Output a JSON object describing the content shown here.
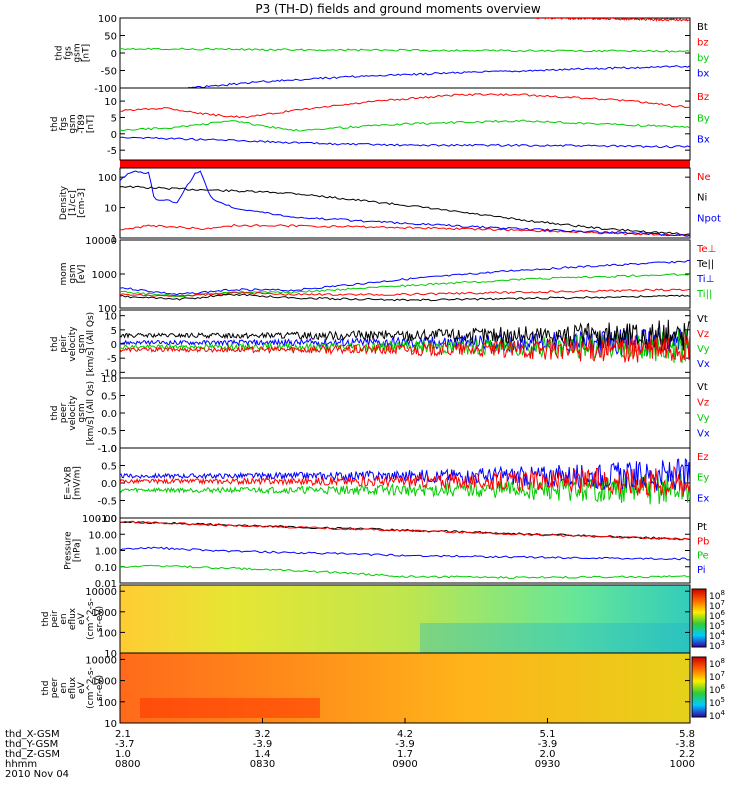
{
  "title": "P3 (TH-D) fields and ground moments overview",
  "chart_data": [
    {
      "type": "line",
      "ylabel": [
        "thd",
        "fgs",
        "gsm",
        "[nT]"
      ],
      "ylim": [
        -100,
        100
      ],
      "yticks": [
        "100",
        "50",
        "0",
        "-50",
        "-100"
      ],
      "ytick_values": [
        100,
        50,
        0,
        -50,
        -100
      ],
      "legend": [
        {
          "name": "Bt",
          "color": "#000000"
        },
        {
          "name": "bz",
          "color": "#ff0000"
        },
        {
          "name": "by",
          "color": "#00cc00"
        },
        {
          "name": "bx",
          "color": "#0000ff"
        }
      ],
      "series": [
        {
          "name": "Bt",
          "color": "#000000",
          "x": [
            0.73,
            1.0
          ],
          "y": [
            103,
            101
          ]
        },
        {
          "name": "bz",
          "color": "#ff0000",
          "x": [
            0.73,
            0.85,
            1.0
          ],
          "y": [
            100,
            98,
            94
          ]
        },
        {
          "name": "by",
          "color": "#00cc00",
          "x": [
            0,
            0.3,
            0.6,
            1.0
          ],
          "y": [
            13,
            9,
            7,
            5
          ]
        },
        {
          "name": "bx",
          "color": "#0000ff",
          "x": [
            0.12,
            0.25,
            0.4,
            0.6,
            0.8,
            1.0
          ],
          "y": [
            -100,
            -82,
            -68,
            -56,
            -46,
            -38
          ]
        }
      ]
    },
    {
      "type": "line",
      "ylabel": [
        "thd",
        "fgs",
        "gsm",
        "-T89",
        "[nT]"
      ],
      "ylim": [
        -8,
        14
      ],
      "yticks": [
        "10",
        "5",
        "0",
        "-5"
      ],
      "ytick_values": [
        10,
        5,
        0,
        -5
      ],
      "legend": [
        {
          "name": "Bz",
          "color": "#ff0000"
        },
        {
          "name": "By",
          "color": "#00cc00"
        },
        {
          "name": "Bx",
          "color": "#0000ff"
        }
      ],
      "series": [
        {
          "name": "Bz",
          "color": "#ff0000",
          "x": [
            0,
            0.08,
            0.15,
            0.22,
            0.3,
            0.45,
            0.6,
            0.7,
            0.8,
            0.9,
            1.0
          ],
          "y": [
            7,
            8,
            6,
            5,
            7,
            10,
            12,
            12,
            11,
            10,
            8
          ]
        },
        {
          "name": "By",
          "color": "#00cc00",
          "x": [
            0,
            0.1,
            0.2,
            0.3,
            0.5,
            0.7,
            0.85,
            1.0
          ],
          "y": [
            1,
            2,
            4,
            1,
            3,
            4,
            3,
            2
          ]
        },
        {
          "name": "Bx",
          "color": "#0000ff",
          "x": [
            0,
            0.1,
            0.2,
            0.35,
            0.5,
            0.7,
            1.0
          ],
          "y": [
            -1,
            -1.5,
            -2,
            -3,
            -3.5,
            -3.5,
            -4
          ]
        }
      ]
    },
    {
      "type": "line",
      "ylabel": [
        "Density",
        "[1/cc]",
        "[cm-3]"
      ],
      "log": true,
      "ylim": [
        1,
        200
      ],
      "yticks": [
        "100",
        "10",
        "1"
      ],
      "ytick_values": [
        100,
        10,
        1
      ],
      "legend": [
        {
          "name": "Ne",
          "color": "#ff0000"
        },
        {
          "name": "Ni",
          "color": "#000000"
        },
        {
          "name": "Npot",
          "color": "#0000ff"
        }
      ],
      "series": [
        {
          "name": "Ni",
          "color": "#000000",
          "x": [
            0,
            0.05,
            0.12,
            0.3,
            0.5,
            0.7,
            0.85,
            1.0
          ],
          "y": [
            50,
            45,
            40,
            30,
            12,
            4,
            2,
            1.3
          ]
        },
        {
          "name": "Ne",
          "color": "#ff0000",
          "x": [
            0,
            0.05,
            0.1,
            0.15,
            0.2,
            0.3,
            0.5,
            0.7,
            1.0
          ],
          "y": [
            1.8,
            2.5,
            2.3,
            2.0,
            2.6,
            2.5,
            2.2,
            1.8,
            1.2
          ]
        },
        {
          "name": "Npot",
          "color": "#0000ff",
          "x": [
            0,
            0.02,
            0.05,
            0.06,
            0.1,
            0.13,
            0.14,
            0.16,
            0.2,
            0.3,
            0.5,
            0.7,
            1.0
          ],
          "y": [
            80,
            150,
            140,
            20,
            15,
            120,
            170,
            20,
            10,
            5,
            3,
            2,
            1.2
          ]
        }
      ]
    },
    {
      "type": "line",
      "ylabel": [
        "mom",
        "gsm",
        "[eV]"
      ],
      "log": true,
      "ylim": [
        100,
        10000
      ],
      "yticks": [
        "10000",
        "1000",
        "100"
      ],
      "ytick_values": [
        10000,
        1000,
        100
      ],
      "legend": [
        {
          "name": "Te⊥",
          "color": "#ff0000"
        },
        {
          "name": "Te||",
          "color": "#000000"
        },
        {
          "name": "Ti⊥",
          "color": "#0000ff"
        },
        {
          "name": "Ti||",
          "color": "#00cc00"
        }
      ],
      "series": [
        {
          "name": "Ti⊥",
          "color": "#0000ff",
          "x": [
            0,
            0.1,
            0.2,
            0.3,
            0.5,
            0.7,
            1.0
          ],
          "y": [
            400,
            250,
            350,
            330,
            700,
            1300,
            2400
          ]
        },
        {
          "name": "Ti||",
          "color": "#00cc00",
          "x": [
            0,
            0.1,
            0.2,
            0.3,
            0.5,
            0.7,
            1.0
          ],
          "y": [
            300,
            220,
            300,
            290,
            450,
            700,
            1000
          ]
        },
        {
          "name": "Te⊥",
          "color": "#ff0000",
          "x": [
            0,
            0.1,
            0.2,
            0.3,
            0.5,
            0.7,
            1.0
          ],
          "y": [
            250,
            220,
            280,
            250,
            250,
            290,
            350
          ]
        },
        {
          "name": "Te||",
          "color": "#000000",
          "x": [
            0,
            0.1,
            0.2,
            0.3,
            0.5,
            0.7,
            1.0
          ],
          "y": [
            220,
            180,
            250,
            200,
            170,
            190,
            230
          ]
        }
      ]
    },
    {
      "type": "line",
      "noisy": true,
      "ylabel": [
        "thd",
        "peir",
        "velocity",
        "gsm",
        "[km/s] (All Qs)"
      ],
      "ylim": [
        -12,
        12
      ],
      "yticks": [
        "10",
        "5",
        "0",
        "-5",
        "-10"
      ],
      "ytick_values": [
        10,
        5,
        0,
        -5,
        -10
      ],
      "legend": [
        {
          "name": "Vt",
          "color": "#000000"
        },
        {
          "name": "Vz",
          "color": "#ff0000"
        },
        {
          "name": "Vy",
          "color": "#00cc00"
        },
        {
          "name": "Vx",
          "color": "#0000ff"
        }
      ],
      "series": [
        {
          "name": "Vx",
          "color": "#0000ff",
          "mean": 0.5
        },
        {
          "name": "Vy",
          "color": "#00cc00",
          "mean": -1
        },
        {
          "name": "Vt",
          "color": "#000000",
          "mean": 3
        },
        {
          "name": "Vz",
          "color": "#ff0000",
          "mean": -2
        }
      ]
    },
    {
      "type": "line",
      "ylabel": [
        "thd",
        "peer",
        "velocity",
        "gsm",
        "[km/s] (All Qs)"
      ],
      "ylim": [
        -1,
        1
      ],
      "yticks": [
        "1.0",
        "0.5",
        "0.0",
        "-0.5",
        "-1.0"
      ],
      "ytick_values": [
        1,
        0.5,
        0,
        -0.5,
        -1
      ],
      "legend": [
        {
          "name": "Vt",
          "color": "#000000"
        },
        {
          "name": "Vz",
          "color": "#ff0000"
        },
        {
          "name": "Vy",
          "color": "#00cc00"
        },
        {
          "name": "Vx",
          "color": "#0000ff"
        }
      ],
      "series": []
    },
    {
      "type": "line",
      "noisy": true,
      "ylabel": [
        "E=-VxB",
        "[mV/m]"
      ],
      "ylim": [
        -1,
        1
      ],
      "yticks": [
        "1.0",
        "0.5",
        "0.0",
        "-0.5",
        "-1.0"
      ],
      "ytick_values": [
        1,
        0.5,
        0,
        -0.5,
        -1
      ],
      "legend": [
        {
          "name": "Ez",
          "color": "#ff0000"
        },
        {
          "name": "Ey",
          "color": "#00cc00"
        },
        {
          "name": "Ex",
          "color": "#0000ff"
        }
      ],
      "series": [
        {
          "name": "Ey",
          "color": "#00cc00",
          "mean": -0.2
        },
        {
          "name": "Ex",
          "color": "#0000ff",
          "mean": 0.2
        },
        {
          "name": "Ez",
          "color": "#ff0000",
          "mean": 0.05
        }
      ]
    },
    {
      "type": "line",
      "log": true,
      "ylabel": [
        "Pressure",
        "[nPa]"
      ],
      "ylim": [
        0.01,
        100
      ],
      "yticks": [
        "100.00",
        "10.00",
        "1.00",
        "0.10",
        "0.01"
      ],
      "ytick_values": [
        100,
        10,
        1,
        0.1,
        0.01
      ],
      "legend": [
        {
          "name": "Pt",
          "color": "#000000"
        },
        {
          "name": "Pb",
          "color": "#ff0000"
        },
        {
          "name": "Pe",
          "color": "#00cc00"
        },
        {
          "name": "Pi",
          "color": "#0000ff"
        }
      ],
      "series": [
        {
          "name": "Pt",
          "color": "#000000",
          "x": [
            0,
            0.3,
            0.6,
            1.0
          ],
          "y": [
            60,
            28,
            14,
            5
          ]
        },
        {
          "name": "Pb",
          "color": "#ff0000",
          "x": [
            0,
            0.3,
            0.6,
            1.0
          ],
          "y": [
            58,
            27,
            13,
            4.8
          ]
        },
        {
          "name": "Pi",
          "color": "#0000ff",
          "x": [
            0,
            0.05,
            0.2,
            0.5,
            0.8,
            1.0
          ],
          "y": [
            1.2,
            1.5,
            0.9,
            0.5,
            0.35,
            0.3
          ]
        },
        {
          "name": "Pe",
          "color": "#00cc00",
          "x": [
            0,
            0.05,
            0.2,
            0.35,
            0.5,
            0.7,
            1.0
          ],
          "y": [
            0.1,
            0.12,
            0.08,
            0.05,
            0.025,
            0.022,
            0.025
          ]
        }
      ]
    },
    {
      "type": "heatmap",
      "ylabel": [
        "thd",
        "peir",
        "en",
        "eflux",
        "eV",
        "(cm^2-s-",
        "sr-eV)"
      ],
      "log": true,
      "ylim": [
        10,
        20000
      ],
      "yticks": [
        "10000",
        "1000",
        "100",
        "10"
      ],
      "ytick_values": [
        10000,
        1000,
        100,
        10
      ],
      "colorbar": [
        "10^8",
        "10^7",
        "10^6",
        "10^5",
        "10^4",
        "10^3"
      ]
    },
    {
      "type": "heatmap",
      "ylabel": [
        "thd",
        "peer",
        "en",
        "eflux",
        "eV",
        "(cm^2-s-",
        "sr-eV)"
      ],
      "log": true,
      "ylim": [
        10,
        20000
      ],
      "yticks": [
        "10000",
        "1000",
        "100",
        "10"
      ],
      "ytick_values": [
        10000,
        1000,
        100,
        10
      ],
      "colorbar": [
        "10^8",
        "10^7",
        "10^6",
        "10^5",
        "10^4"
      ]
    }
  ],
  "xaxis": {
    "rows": [
      {
        "label": "thd_X-GSM",
        "values": [
          "2.1",
          "3.2",
          "4.2",
          "5.1",
          "5.8"
        ]
      },
      {
        "label": "thd_Y-GSM",
        "values": [
          "-3.7",
          "-3.9",
          "-3.9",
          "-3.9",
          "-3.8"
        ]
      },
      {
        "label": "thd_Z-GSM",
        "values": [
          "1.0",
          "1.4",
          "1.7",
          "2.0",
          "2.2"
        ]
      },
      {
        "label": "hhmm",
        "values": [
          "0800",
          "0830",
          "0900",
          "0930",
          "1000"
        ]
      }
    ],
    "date": "2010 Nov 04"
  }
}
